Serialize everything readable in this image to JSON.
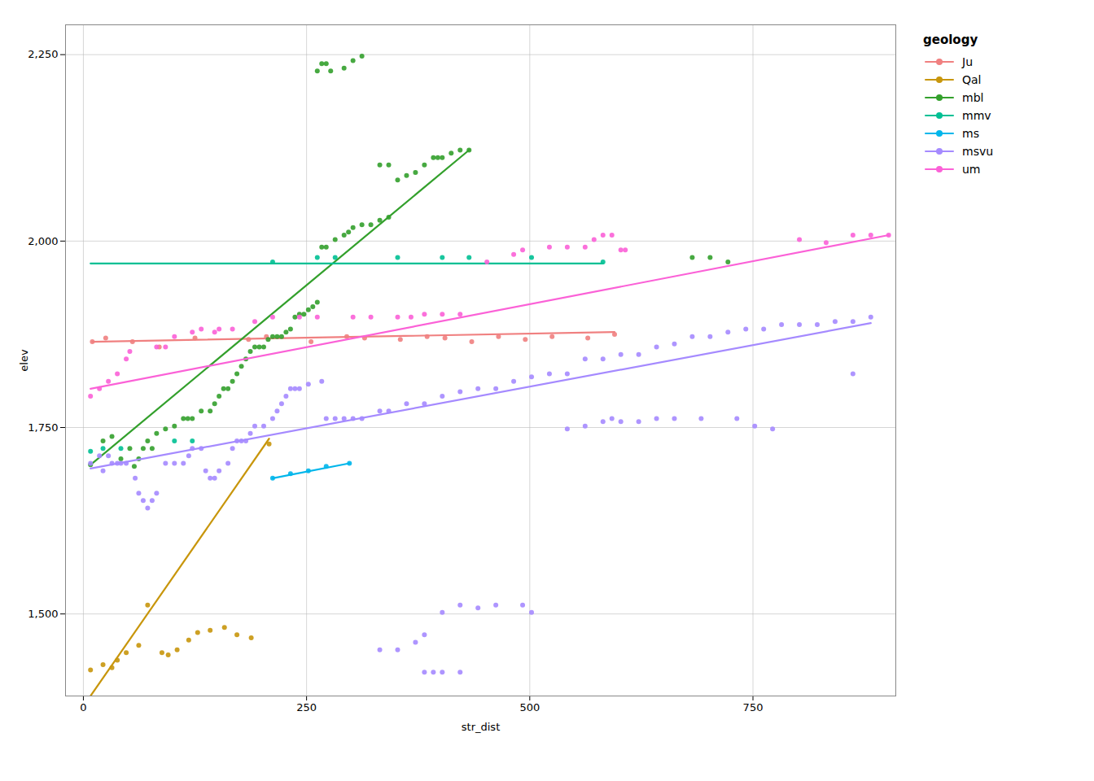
{
  "chart_data": {
    "type": "scatter",
    "x_label": "str_dist",
    "y_label": "elev",
    "legend_title": "geology",
    "legend": "right",
    "grid": true,
    "xlim": [
      -20,
      910
    ],
    "ylim": [
      1390,
      2290
    ],
    "xticks": [
      0,
      250,
      500,
      750
    ],
    "yticks": [
      1500,
      1750,
      2000,
      2250
    ],
    "series": [
      {
        "name": "Ju",
        "color": "#F08080",
        "x": [
          10,
          25,
          55,
          85,
          125,
          185,
          205,
          255,
          295,
          315,
          355,
          385,
          405,
          435,
          465,
          495,
          525,
          565,
          595
        ],
        "values": [
          1865,
          1870,
          1865,
          1858,
          1870,
          1868,
          1872,
          1865,
          1872,
          1870,
          1868,
          1872,
          1870,
          1865,
          1872,
          1868,
          1872,
          1870,
          1875
        ],
        "trend_x": [
          10,
          595
        ],
        "trend_y": [
          1865,
          1878
        ]
      },
      {
        "name": "Qal",
        "color": "#C8960C",
        "x": [
          8,
          22,
          32,
          38,
          48,
          62,
          72,
          88,
          95,
          105,
          118,
          128,
          142,
          158,
          172,
          188,
          208
        ],
        "values": [
          1425,
          1432,
          1428,
          1438,
          1448,
          1458,
          1512,
          1448,
          1445,
          1452,
          1465,
          1475,
          1478,
          1482,
          1472,
          1468,
          1728
        ],
        "trend_x": [
          8,
          208
        ],
        "trend_y": [
          1390,
          1735
        ]
      },
      {
        "name": "mbl",
        "color": "#33A02C",
        "x": [
          8,
          22,
          32,
          42,
          52,
          57,
          62,
          67,
          72,
          77,
          82,
          92,
          102,
          112,
          117,
          122,
          132,
          142,
          147,
          152,
          157,
          162,
          167,
          172,
          177,
          182,
          187,
          192,
          197,
          202,
          207,
          212,
          217,
          222,
          227,
          232,
          237,
          242,
          247,
          252,
          257,
          262,
          267,
          272,
          282,
          292,
          297,
          302,
          312,
          322,
          332,
          342,
          352,
          362,
          372,
          382,
          392,
          397,
          402,
          412,
          422,
          432,
          262,
          267,
          272,
          277,
          292,
          302,
          312,
          332,
          342,
          682,
          702,
          722
        ],
        "values": [
          1700,
          1732,
          1738,
          1708,
          1722,
          1698,
          1708,
          1722,
          1732,
          1722,
          1742,
          1748,
          1752,
          1762,
          1762,
          1762,
          1772,
          1772,
          1782,
          1792,
          1802,
          1802,
          1812,
          1822,
          1832,
          1842,
          1852,
          1858,
          1858,
          1858,
          1868,
          1872,
          1872,
          1872,
          1878,
          1882,
          1898,
          1902,
          1902,
          1908,
          1912,
          1918,
          1992,
          1992,
          2002,
          2008,
          2012,
          2018,
          2022,
          2022,
          2028,
          2032,
          2082,
          2088,
          2092,
          2102,
          2112,
          2112,
          2112,
          2118,
          2122,
          2122,
          2228,
          2238,
          2238,
          2228,
          2232,
          2242,
          2248,
          2102,
          2102,
          1978,
          1978,
          1972
        ],
        "trend_x": [
          8,
          432
        ],
        "trend_y": [
          1700,
          2122
        ]
      },
      {
        "name": "mmv",
        "color": "#00C094",
        "x": [
          8,
          22,
          42,
          102,
          122,
          212,
          262,
          282,
          352,
          402,
          432,
          502,
          582
        ],
        "values": [
          1718,
          1722,
          1722,
          1732,
          1732,
          1972,
          1978,
          1978,
          1978,
          1978,
          1978,
          1978,
          1972
        ],
        "trend_x": [
          8,
          582
        ],
        "trend_y": [
          1970,
          1970
        ]
      },
      {
        "name": "ms",
        "color": "#00B6EB",
        "x": [
          212,
          232,
          252,
          272,
          298
        ],
        "values": [
          1682,
          1688,
          1692,
          1698,
          1702
        ],
        "trend_x": [
          212,
          298
        ],
        "trend_y": [
          1682,
          1702
        ]
      },
      {
        "name": "msvu",
        "color": "#A58AFF",
        "x": [
          8,
          18,
          22,
          28,
          32,
          38,
          42,
          48,
          58,
          62,
          67,
          72,
          77,
          82,
          92,
          102,
          112,
          118,
          122,
          132,
          137,
          142,
          147,
          152,
          162,
          167,
          172,
          177,
          182,
          187,
          192,
          202,
          212,
          217,
          222,
          227,
          232,
          237,
          242,
          252,
          267,
          272,
          282,
          292,
          302,
          312,
          332,
          342,
          362,
          382,
          402,
          422,
          442,
          462,
          482,
          502,
          522,
          542,
          562,
          582,
          602,
          622,
          642,
          662,
          682,
          702,
          722,
          742,
          762,
          782,
          802,
          822,
          842,
          862,
          882,
          332,
          352,
          372,
          382,
          402,
          422,
          442,
          462,
          492,
          542,
          562,
          582,
          592,
          602,
          622,
          642,
          662,
          692,
          732,
          752,
          772,
          382,
          392,
          402,
          422,
          502,
          862
        ],
        "values": [
          1702,
          1712,
          1692,
          1712,
          1702,
          1702,
          1702,
          1702,
          1682,
          1662,
          1652,
          1642,
          1652,
          1662,
          1702,
          1702,
          1702,
          1712,
          1722,
          1722,
          1692,
          1682,
          1682,
          1692,
          1702,
          1722,
          1732,
          1732,
          1732,
          1742,
          1752,
          1752,
          1762,
          1772,
          1782,
          1792,
          1802,
          1802,
          1802,
          1808,
          1812,
          1762,
          1762,
          1762,
          1762,
          1762,
          1772,
          1772,
          1782,
          1782,
          1792,
          1798,
          1802,
          1802,
          1812,
          1818,
          1822,
          1822,
          1842,
          1842,
          1848,
          1848,
          1858,
          1862,
          1872,
          1872,
          1878,
          1882,
          1882,
          1888,
          1888,
          1888,
          1892,
          1892,
          1898,
          1452,
          1452,
          1462,
          1472,
          1502,
          1512,
          1508,
          1512,
          1512,
          1748,
          1752,
          1758,
          1762,
          1758,
          1758,
          1762,
          1762,
          1762,
          1762,
          1752,
          1748,
          1422,
          1422,
          1422,
          1422,
          1502,
          1822
        ],
        "trend_x": [
          8,
          882
        ],
        "trend_y": [
          1695,
          1890
        ]
      },
      {
        "name": "um",
        "color": "#FB61D7",
        "x": [
          8,
          18,
          28,
          38,
          48,
          52,
          82,
          92,
          102,
          122,
          132,
          147,
          152,
          167,
          192,
          212,
          242,
          262,
          302,
          322,
          352,
          367,
          382,
          402,
          422,
          452,
          482,
          492,
          522,
          542,
          562,
          572,
          582,
          592,
          602,
          607,
          802,
          832,
          862,
          882,
          902
        ],
        "values": [
          1792,
          1802,
          1812,
          1822,
          1842,
          1852,
          1858,
          1858,
          1872,
          1878,
          1882,
          1878,
          1882,
          1882,
          1892,
          1898,
          1898,
          1898,
          1898,
          1898,
          1898,
          1898,
          1902,
          1902,
          1902,
          1972,
          1982,
          1988,
          1992,
          1992,
          1992,
          2002,
          2008,
          2008,
          1988,
          1988,
          2002,
          1998,
          2008,
          2008,
          2008
        ],
        "trend_x": [
          8,
          902
        ],
        "trend_y": [
          1802,
          2008
        ]
      }
    ]
  }
}
